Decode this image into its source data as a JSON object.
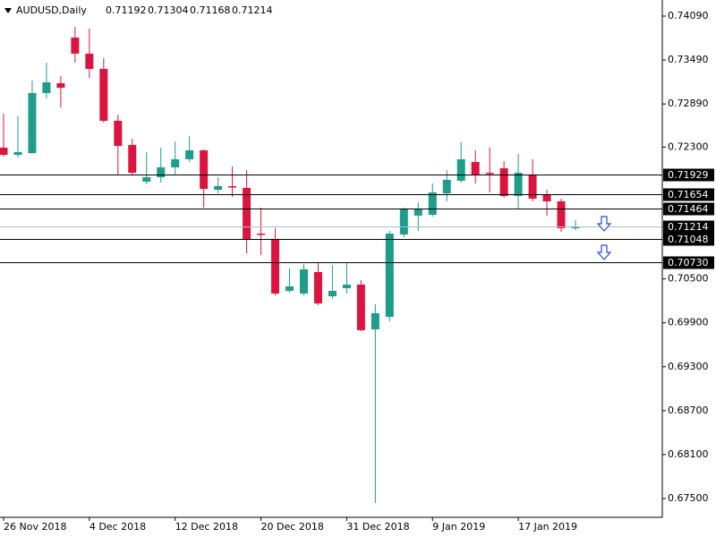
{
  "chart_data": {
    "type": "candlestick",
    "title": "AUDUSD,Daily",
    "categories": [
      "26 Nov 2018",
      null,
      null,
      null,
      null,
      null,
      "4 Dec 2018",
      null,
      null,
      null,
      null,
      null,
      "12 Dec 2018",
      null,
      null,
      null,
      null,
      null,
      "20 Dec 2018",
      null,
      null,
      null,
      null,
      null,
      "31 Dec 2018",
      null,
      null,
      null,
      null,
      null,
      "9 Jan 2019",
      null,
      null,
      null,
      null,
      null,
      "17 Jan 2019",
      null,
      null,
      null,
      null
    ],
    "open": [
      0.72293,
      0.72195,
      0.72219,
      0.73039,
      0.73173,
      0.73797,
      0.73577,
      0.73369,
      0.7266,
      0.72329,
      0.71828,
      0.71889,
      0.72024,
      0.72134,
      0.72256,
      0.71718,
      0.71767,
      0.71743,
      0.71119,
      0.71046,
      0.70337,
      0.703,
      0.70593,
      0.70263,
      0.70373,
      0.70422,
      0.69811,
      0.69982,
      0.71107,
      0.71364,
      0.71376,
      0.71669,
      0.7184,
      0.72097,
      0.7195,
      0.72012,
      0.71633,
      0.71926,
      0.71645,
      0.71559,
      0.71192
    ],
    "high": [
      0.72757,
      0.72721,
      0.7321,
      0.73454,
      0.73271,
      0.73943,
      0.73919,
      0.73515,
      0.72745,
      0.72415,
      0.72232,
      0.72293,
      0.72378,
      0.72452,
      0.72268,
      0.71889,
      0.72036,
      0.71987,
      0.71474,
      0.71192,
      0.70642,
      0.70703,
      0.70716,
      0.70691,
      0.70716,
      0.70483,
      0.70153,
      0.71156,
      0.71474,
      0.71547,
      0.71804,
      0.71987,
      0.72366,
      0.72256,
      0.72293,
      0.72109,
      0.72207,
      0.72134,
      0.71718,
      0.71596,
      0.71304
    ],
    "low": [
      0.7217,
      0.72158,
      0.72207,
      0.72965,
      0.72843,
      0.73454,
      0.73246,
      0.72635,
      0.71926,
      0.71926,
      0.71791,
      0.71816,
      0.71926,
      0.72097,
      0.71474,
      0.71669,
      0.7162,
      0.7085,
      0.70826,
      0.70275,
      0.70312,
      0.70275,
      0.70141,
      0.70227,
      0.703,
      0.69786,
      0.67439,
      0.69921,
      0.7107,
      0.71156,
      0.71351,
      0.71559,
      0.71816,
      0.71804,
      0.71681,
      0.71608,
      0.71461,
      0.71559,
      0.71364,
      0.71143,
      0.71168
    ],
    "close": [
      0.72195,
      0.72232,
      0.73039,
      0.73185,
      0.73112,
      0.73577,
      0.73369,
      0.7266,
      0.72317,
      0.7195,
      0.71889,
      0.72024,
      0.72134,
      0.72256,
      0.7173,
      0.71767,
      0.71755,
      0.71046,
      0.71107,
      0.703,
      0.70398,
      0.7063,
      0.70165,
      0.70337,
      0.70422,
      0.69799,
      0.70031,
      0.71119,
      0.71461,
      0.71461,
      0.71681,
      0.71853,
      0.72134,
      0.71926,
      0.71938,
      0.71633,
      0.7195,
      0.71596,
      0.71559,
      0.71192,
      0.71214
    ],
    "up_color": "#1e9c8c",
    "down_color": "#dc1440",
    "ylim": [
      0.67243,
      0.7431
    ],
    "yticks": [
      {
        "value": 0.7409,
        "label": "0.74090"
      },
      {
        "value": 0.7349,
        "label": "0.73490"
      },
      {
        "value": 0.7289,
        "label": "0.72890"
      },
      {
        "value": 0.723,
        "label": "0.72300"
      },
      {
        "value": 0.705,
        "label": "0.70500"
      },
      {
        "value": 0.699,
        "label": "0.69900"
      },
      {
        "value": 0.693,
        "label": "0.69300"
      },
      {
        "value": 0.687,
        "label": "0.68700"
      },
      {
        "value": 0.681,
        "label": "0.68100"
      },
      {
        "value": 0.675,
        "label": "0.67500"
      }
    ],
    "levels": [
      0.71929,
      0.71654,
      0.71464,
      0.71048,
      {
        "value": 0.7073,
        "label": "0.70730"
      }
    ],
    "level_color": "#000000",
    "price_line_color": "#a8bccf"
  }
}
